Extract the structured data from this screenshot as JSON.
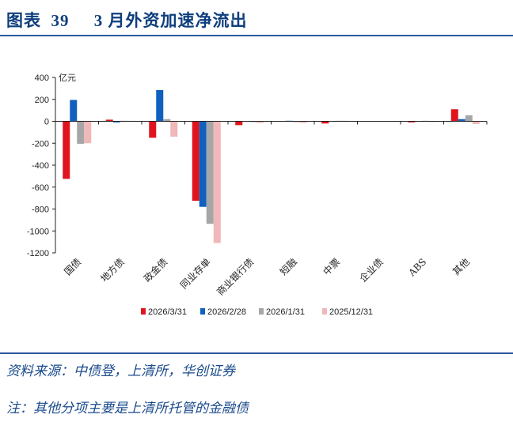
{
  "header": {
    "title": "图表  39     3 月外资加速净流出"
  },
  "footer": {
    "source": "资料来源：中债登，上清所，华创证券",
    "note": "注：其他分项主要是上清所托管的金融债"
  },
  "colors": {
    "s1": "#e0141e",
    "s2": "#1060c0",
    "s3": "#a6a6a6",
    "s4": "#f0b8b8",
    "brand": "#0e3e7d"
  },
  "chart_data": {
    "type": "bar",
    "unit_label": "亿元",
    "ylim": [
      -1200,
      400
    ],
    "yticks": [
      400,
      200,
      0,
      -200,
      -400,
      -600,
      -800,
      -1000,
      -1200
    ],
    "categories": [
      "国债",
      "地方债",
      "政金债",
      "同业存单",
      "商业银行债",
      "短融",
      "中票",
      "企业债",
      "ABS",
      "其他"
    ],
    "series": [
      {
        "name": "2026/3/31",
        "color": "#e0141e",
        "values": [
          -525,
          15,
          -150,
          -725,
          -35,
          0,
          -20,
          0,
          -10,
          110
        ]
      },
      {
        "name": "2026/2/28",
        "color": "#1060c0",
        "values": [
          195,
          -10,
          285,
          -780,
          0,
          5,
          0,
          0,
          0,
          20
        ]
      },
      {
        "name": "2026/1/31",
        "color": "#a6a6a6",
        "values": [
          -205,
          5,
          20,
          -935,
          -5,
          -5,
          5,
          0,
          5,
          55
        ]
      },
      {
        "name": "2025/12/31",
        "color": "#f0b8b8",
        "values": [
          -200,
          5,
          -140,
          -1110,
          -15,
          -15,
          5,
          0,
          -5,
          -25
        ]
      }
    ],
    "legend_position": "bottom"
  }
}
